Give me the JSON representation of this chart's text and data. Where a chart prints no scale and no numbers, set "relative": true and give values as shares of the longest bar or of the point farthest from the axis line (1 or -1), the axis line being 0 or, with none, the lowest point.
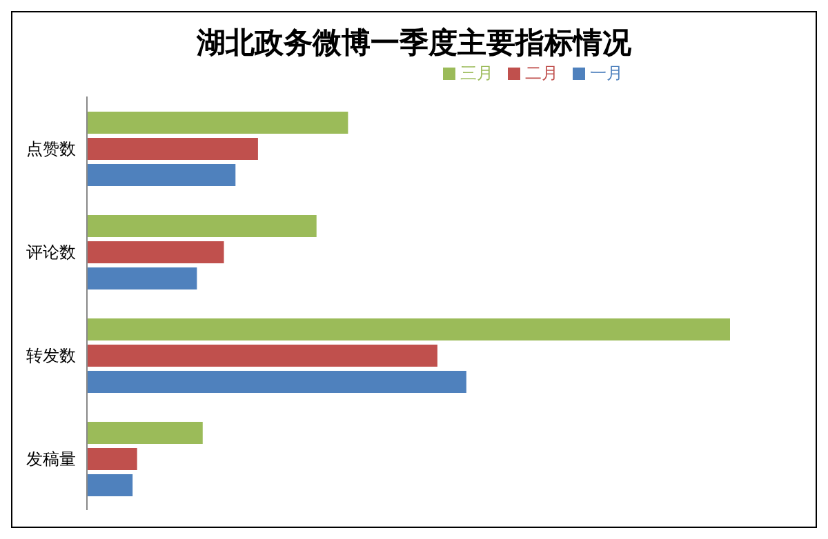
{
  "chart_data": {
    "type": "bar",
    "orientation": "horizontal",
    "relative": true,
    "title": "湖北政务微博一季度主要指标情况",
    "categories": [
      "点赞数",
      "评论数",
      "转发数",
      "发稿量"
    ],
    "series": [
      {
        "name": "三月",
        "color": "#9bbb59",
        "values": [
          0.406,
          0.357,
          1,
          0.18
        ]
      },
      {
        "name": "二月",
        "color": "#c0504d",
        "values": [
          0.266,
          0.213,
          0.545,
          0.078
        ]
      },
      {
        "name": "一月",
        "color": "#4f81bd",
        "values": [
          0.231,
          0.171,
          0.59,
          0.071
        ]
      }
    ],
    "legend": "top",
    "grid": false
  }
}
